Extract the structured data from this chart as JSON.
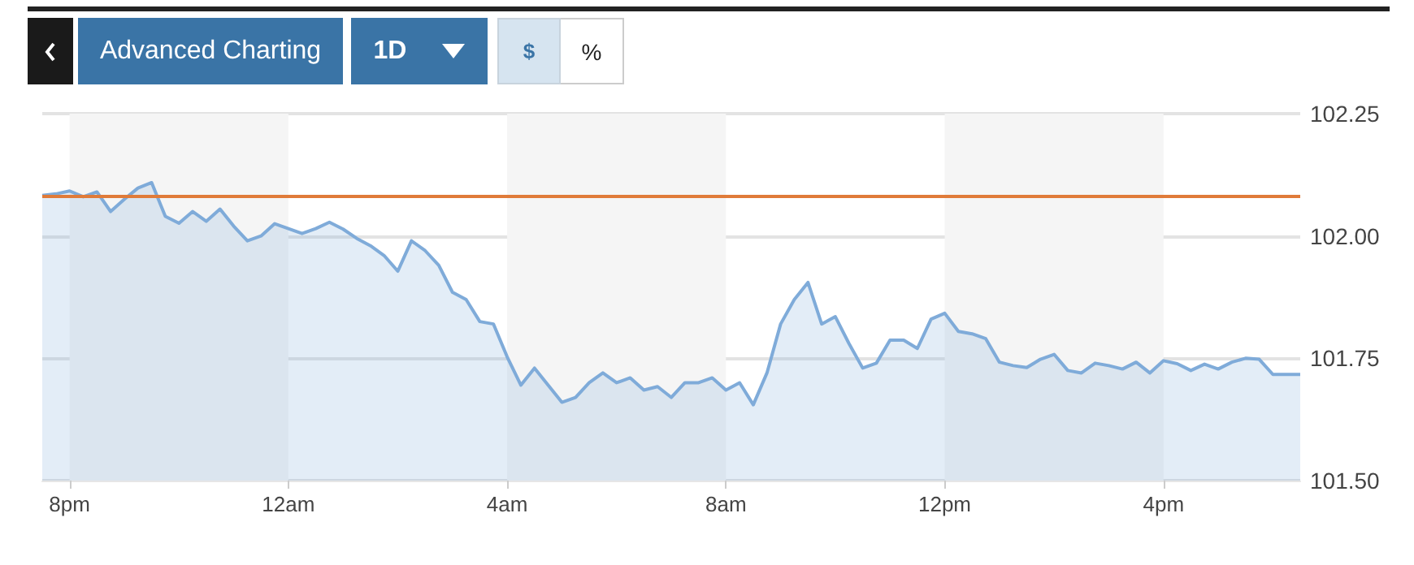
{
  "chart_data": {
    "type": "area",
    "annotations": [
      "Advanced Charting",
      "1D",
      "$",
      "%"
    ],
    "categories": [
      null,
      null,
      "8pm",
      null,
      null,
      null,
      null,
      null,
      null,
      null,
      null,
      null,
      null,
      null,
      null,
      null,
      null,
      null,
      "12am",
      null,
      null,
      null,
      null,
      null,
      null,
      null,
      null,
      null,
      null,
      null,
      null,
      null,
      null,
      null,
      "4am",
      null,
      null,
      null,
      null,
      null,
      null,
      null,
      null,
      null,
      null,
      null,
      null,
      null,
      null,
      null,
      "8am",
      null,
      null,
      null,
      null,
      null,
      null,
      null,
      null,
      null,
      null,
      null,
      null,
      null,
      null,
      null,
      "12pm",
      null,
      null,
      null,
      null,
      null,
      null,
      null,
      null,
      null,
      null,
      null,
      null,
      null,
      null,
      null,
      "4pm",
      null,
      null,
      null,
      null,
      null,
      null,
      null,
      null,
      null,
      null
    ],
    "series": [
      {
        "color": "#7fabd9",
        "values": [
          102.083,
          102.086,
          102.092,
          102.08,
          102.09,
          102.05,
          102.075,
          102.098,
          102.109,
          102.04,
          102.026,
          102.05,
          102.03,
          102.055,
          102.02,
          101.99,
          102.0,
          102.025,
          102.015,
          102.005,
          102.015,
          102.028,
          102.014,
          101.995,
          101.98,
          101.96,
          101.928,
          101.99,
          101.97,
          101.94,
          101.885,
          101.87,
          101.825,
          101.82,
          101.753,
          101.695,
          101.73,
          101.695,
          101.66,
          101.67,
          101.7,
          101.72,
          101.7,
          101.71,
          101.685,
          101.692,
          101.67,
          101.7,
          101.7,
          101.71,
          101.685,
          101.7,
          101.655,
          101.72,
          101.82,
          101.87,
          101.905,
          101.82,
          101.835,
          101.78,
          101.73,
          101.74,
          101.787,
          101.787,
          101.77,
          101.83,
          101.842,
          101.805,
          101.8,
          101.79,
          101.742,
          101.735,
          101.731,
          101.748,
          101.758,
          101.725,
          101.72,
          101.74,
          101.735,
          101.728,
          101.742,
          101.72,
          101.745,
          101.739,
          101.725,
          101.738,
          101.728,
          101.742,
          101.75,
          101.748,
          101.717,
          101.717,
          101.717
        ]
      }
    ],
    "ylim": [
      101.5,
      102.25
    ],
    "yticks": [
      {
        "value": 101.5,
        "label": "101.50"
      },
      {
        "value": 101.75,
        "label": "101.75"
      },
      {
        "value": 102,
        "label": "102.00"
      },
      {
        "value": 102.25,
        "label": "102.25"
      }
    ],
    "ref_lines": [
      {
        "axis": "y",
        "value": 102.08,
        "color": "#e07b39"
      }
    ],
    "bands": [
      {
        "axis": "x",
        "from": "8pm",
        "to": "12am",
        "color": "#f5f5f5"
      },
      {
        "axis": "x",
        "from": "4am",
        "to": "8am",
        "color": "#f5f5f5"
      },
      {
        "axis": "x",
        "from": "12pm",
        "to": "4pm",
        "color": "#f5f5f5"
      }
    ],
    "grid": "y",
    "marker": "none",
    "line_style": "solid"
  }
}
